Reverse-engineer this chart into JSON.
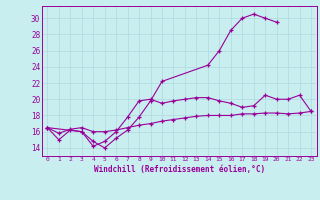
{
  "xlabel": "Windchill (Refroidissement éolien,°C)",
  "bg_color": "#c8eef0",
  "line_color": "#990099",
  "grid_color": "#b0d8dc",
  "xlim": [
    -0.5,
    23.5
  ],
  "ylim": [
    13.0,
    31.5
  ],
  "yticks": [
    14,
    16,
    18,
    20,
    22,
    24,
    26,
    28,
    30
  ],
  "xticks": [
    0,
    1,
    2,
    3,
    4,
    5,
    6,
    7,
    8,
    9,
    10,
    11,
    12,
    13,
    14,
    15,
    16,
    17,
    18,
    19,
    20,
    21,
    22,
    23
  ],
  "line1_x": [
    0,
    1,
    2,
    3,
    4,
    5,
    6,
    7,
    8,
    9,
    10,
    14,
    15,
    16,
    17,
    18,
    19,
    20
  ],
  "line1_y": [
    16.5,
    15.0,
    16.2,
    16.0,
    14.8,
    14.0,
    15.2,
    16.2,
    17.8,
    19.8,
    22.2,
    24.2,
    26.0,
    28.5,
    30.0,
    30.5,
    30.0,
    29.5
  ],
  "line2_x": [
    0,
    3,
    4,
    5,
    6,
    7,
    8,
    9,
    10,
    11,
    12,
    13,
    14,
    15,
    16,
    17,
    18,
    19,
    20,
    21,
    22,
    23
  ],
  "line2_y": [
    16.5,
    16.0,
    14.2,
    14.8,
    16.0,
    17.8,
    19.8,
    20.0,
    19.5,
    19.8,
    20.0,
    20.2,
    20.2,
    19.8,
    19.5,
    19.0,
    19.2,
    20.5,
    20.0,
    20.0,
    20.5,
    18.5
  ],
  "line3_x": [
    0,
    1,
    2,
    3,
    4,
    5,
    6,
    7,
    8,
    9,
    10,
    11,
    12,
    13,
    14,
    15,
    16,
    17,
    18,
    19,
    20,
    21,
    22,
    23
  ],
  "line3_y": [
    16.5,
    15.8,
    16.3,
    16.5,
    16.0,
    16.0,
    16.2,
    16.5,
    16.8,
    17.0,
    17.3,
    17.5,
    17.7,
    17.9,
    18.0,
    18.0,
    18.0,
    18.2,
    18.2,
    18.3,
    18.3,
    18.2,
    18.3,
    18.5
  ]
}
